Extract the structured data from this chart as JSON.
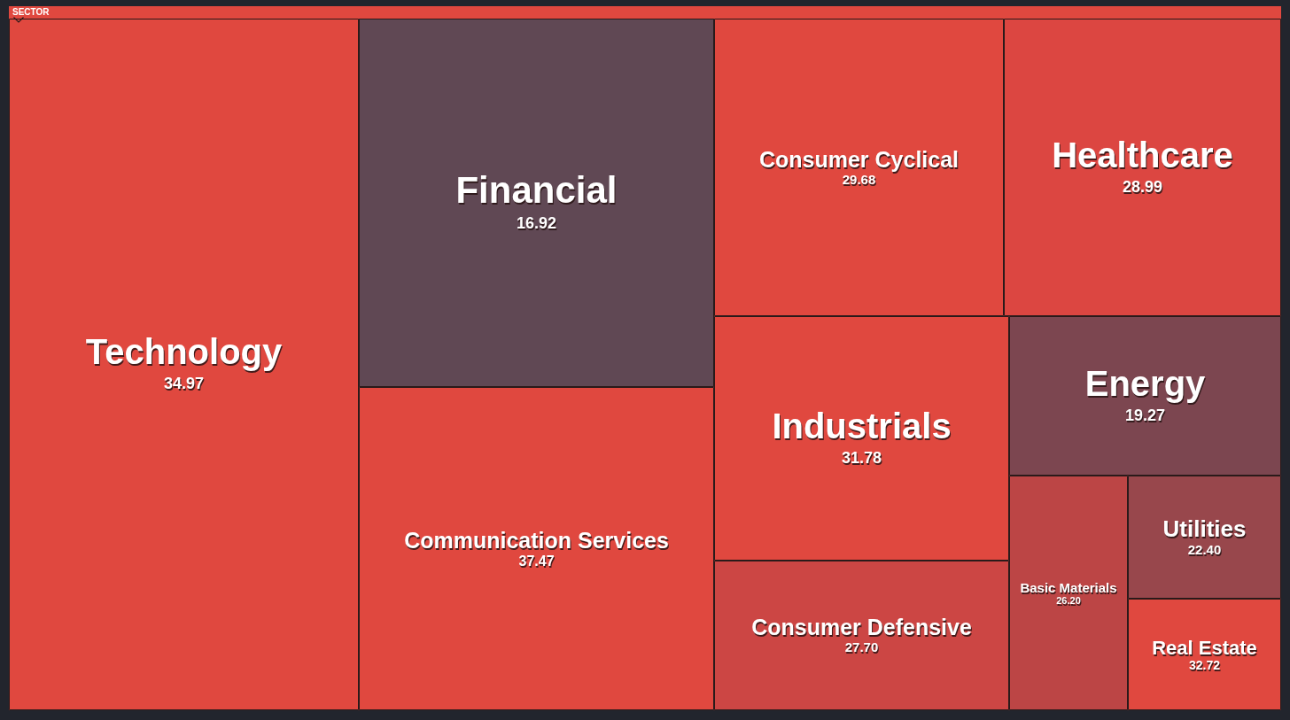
{
  "chart_data": {
    "type": "other",
    "title": "SECTOR",
    "categories": [
      "Technology",
      "Financial",
      "Communication Services",
      "Consumer Cyclical",
      "Healthcare",
      "Industrials",
      "Consumer Defensive",
      "Energy",
      "Basic Materials",
      "Utilities",
      "Real Estate"
    ],
    "values": [
      34.97,
      16.92,
      37.47,
      29.68,
      28.99,
      31.78,
      27.7,
      19.27,
      26.2,
      22.4,
      32.72
    ],
    "value_labels": [
      "34.97",
      "16.92",
      "37.47",
      "29.68",
      "28.99",
      "31.78",
      "27.70",
      "19.27",
      "26.20",
      "22.40",
      "32.72"
    ],
    "colors": [
      "#e0483f",
      "#604854",
      "#e0483f",
      "#e0483f",
      "#dc4641",
      "#e0483f",
      "#cc4644",
      "#7c4650",
      "#bc4545",
      "#98474c",
      "#e0483f"
    ]
  }
}
